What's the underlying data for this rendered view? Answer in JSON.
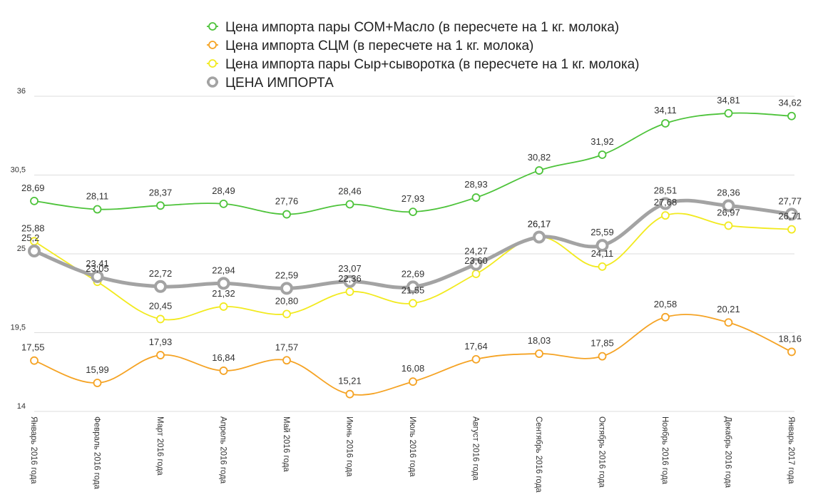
{
  "chart_data": {
    "type": "line",
    "categories": [
      "Январь 2016 года",
      "Февраль 2016 года",
      "Март 2016 года",
      "Апрель 2016 года",
      "Май 2016 года",
      "Июнь 2016 года",
      "Июль 2016 года",
      "Август 2016 года",
      "Сентябрь 2016 года",
      "Октябрь 2016 года",
      "Ноябрь 2016 года",
      "Декабрь 2016 года",
      "Январь 2017 года"
    ],
    "series": [
      {
        "name": "Цена импорта пары СОМ+Масло (в пересчете на 1 кг. молока)",
        "color": "#4dc33a",
        "values": [
          28.69,
          28.11,
          28.37,
          28.49,
          27.76,
          28.46,
          27.93,
          28.93,
          30.82,
          31.92,
          34.11,
          34.81,
          34.62
        ],
        "labels": [
          "28,69",
          "28,11",
          "28,37",
          "28,49",
          "27,76",
          "28,46",
          "27,93",
          "28,93",
          "30,82",
          "31,92",
          "34,11",
          "34,81",
          "34,62"
        ]
      },
      {
        "name": "Цена импорта СЦМ (в пересчете на 1 кг. молока)",
        "color": "#f5a324",
        "values": [
          17.55,
          15.99,
          17.93,
          16.84,
          17.57,
          15.21,
          16.08,
          17.64,
          18.03,
          17.85,
          20.58,
          20.21,
          18.16
        ],
        "labels": [
          "17,55",
          "15,99",
          "17,93",
          "16,84",
          "17,57",
          "15,21",
          "16,08",
          "17,64",
          "18,03",
          "17,85",
          "20,58",
          "20,21",
          "18,16"
        ]
      },
      {
        "name": "Цена импорта пары Сыр+сыворотка (в пересчете на 1 кг. молока)",
        "color": "#f2ea1f",
        "values": [
          25.88,
          23.05,
          20.45,
          21.32,
          20.8,
          22.36,
          21.55,
          23.6,
          26.17,
          24.11,
          27.68,
          26.97,
          26.71
        ],
        "labels": [
          "25,88",
          "23,05",
          "20,45",
          "21,32",
          "20,80",
          "22,36",
          "21,55",
          "23,60",
          "26,17",
          "24,11",
          "27,68",
          "26,97",
          "26,71"
        ]
      },
      {
        "name": "ЦЕНА ИМПОРТА",
        "color": "#a3a3a3",
        "values": [
          25.2,
          23.41,
          22.72,
          22.94,
          22.59,
          23.07,
          22.69,
          24.27,
          26.17,
          25.59,
          28.51,
          28.36,
          27.77
        ],
        "labels": [
          "25,2",
          "23,41",
          "22,72",
          "22,94",
          "22,59",
          "23,07",
          "22,69",
          "24,27",
          "26,17",
          "25,59",
          "28,51",
          "28,36",
          "27,77"
        ]
      }
    ],
    "y_ticks": [
      "36",
      "30,5",
      "25",
      "19,5",
      "14"
    ],
    "y_tick_values": [
      36,
      30.5,
      25,
      19.5,
      14
    ],
    "ylim": [
      14,
      36
    ],
    "grid": true,
    "legend_position": "top-center",
    "title": "",
    "xlabel": "",
    "ylabel": ""
  }
}
